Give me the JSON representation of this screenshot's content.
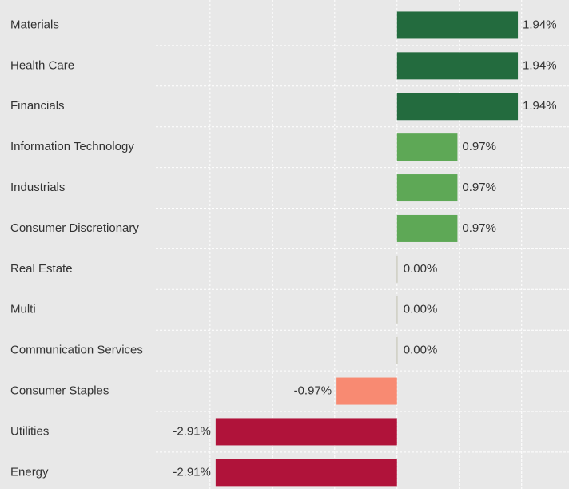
{
  "chart_data": {
    "type": "bar",
    "orientation": "horizontal",
    "categories": [
      "Materials",
      "Health Care",
      "Financials",
      "Information Technology",
      "Industrials",
      "Consumer Discretionary",
      "Real Estate",
      "Multi",
      "Communication Services",
      "Consumer Staples",
      "Utilities",
      "Energy"
    ],
    "values": [
      1.94,
      1.94,
      1.94,
      0.97,
      0.97,
      0.97,
      0.0,
      0.0,
      0.0,
      -0.97,
      -2.91,
      -2.91
    ],
    "value_labels": [
      "1.94%",
      "1.94%",
      "1.94%",
      "0.97%",
      "0.97%",
      "0.97%",
      "0.00%",
      "0.00%",
      "0.00%",
      "-0.97%",
      "-2.91%",
      "-2.91%"
    ],
    "colors": [
      "#236b3e",
      "#236b3e",
      "#236b3e",
      "#5ea856",
      "#5ea856",
      "#5ea856",
      "#d2d2c8",
      "#d2d2c8",
      "#d2d2c8",
      "#f88a72",
      "#b0133a",
      "#b0133a"
    ],
    "xlim": [
      -3.87,
      2.76
    ],
    "xticks": [
      -3,
      -2,
      -1,
      0,
      1,
      2
    ],
    "grid": true
  }
}
